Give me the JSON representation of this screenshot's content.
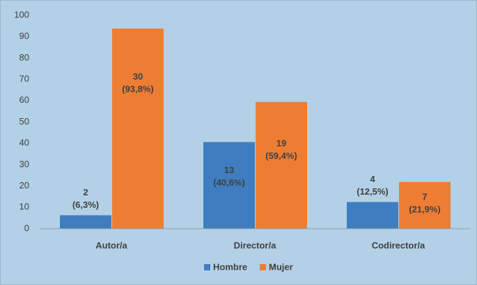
{
  "chart_data": {
    "type": "bar",
    "categories": [
      "Autor/a",
      "Director/a",
      "Codirector/a"
    ],
    "series": [
      {
        "name": "Hombre",
        "color": "#3f7dc0",
        "values": [
          6.3,
          40.6,
          12.5
        ],
        "value_labels": [
          [
            "2",
            "(6,3%)"
          ],
          [
            "13",
            "(40,6%)"
          ],
          [
            "4",
            "(12,5%)"
          ]
        ]
      },
      {
        "name": "Mujer",
        "color": "#ee7d34",
        "values": [
          93.8,
          59.4,
          21.9
        ],
        "value_labels": [
          [
            "30",
            "(93,8%)"
          ],
          [
            "19",
            "(59,4%)"
          ],
          [
            "7",
            "(21,9%)"
          ]
        ]
      }
    ],
    "ylim": [
      0,
      100
    ],
    "yticks": [
      0,
      10,
      20,
      30,
      40,
      50,
      60,
      70,
      80,
      90,
      100
    ],
    "grid": false,
    "legend": "bottom"
  }
}
